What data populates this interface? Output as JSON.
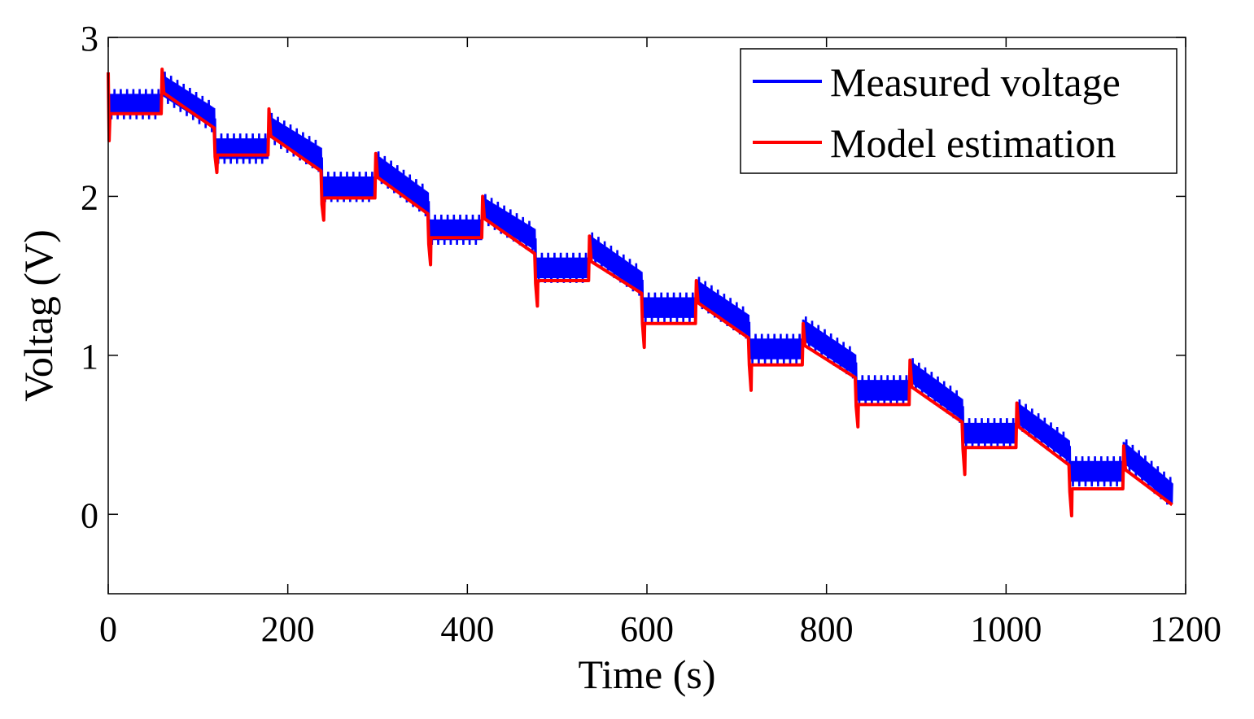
{
  "chart_data": {
    "type": "line",
    "title": "",
    "xlabel": "Time (s)",
    "ylabel": "Voltag (V)",
    "xlim": [
      0,
      1200
    ],
    "ylim": [
      -0.5,
      3
    ],
    "xticks": [
      0,
      200,
      400,
      600,
      800,
      1000,
      1200
    ],
    "xtick_labels": [
      "0",
      "200",
      "400",
      "600",
      "800",
      "1000",
      "1200"
    ],
    "yticks": [
      0,
      1,
      2,
      3
    ],
    "ytick_labels": [
      "0",
      "1",
      "2",
      "3"
    ],
    "grid": false,
    "legend_position": "top-right",
    "colors": {
      "measured": "#0000ff",
      "model": "#ff0000",
      "axes": "#000000"
    },
    "cycle_period_s": 119,
    "rest_duration_s": 59,
    "series": [
      {
        "name": "Measured voltage",
        "color": "#0000ff",
        "band_width_v": 0.13,
        "x": [
          0,
          59,
          60,
          118,
          120,
          178,
          179,
          237,
          239,
          297,
          298,
          356,
          358,
          416,
          417,
          475,
          477,
          535,
          536,
          594,
          596,
          654,
          655,
          713,
          715,
          773,
          774,
          832,
          834,
          892,
          893,
          951,
          953,
          1011,
          1012,
          1070,
          1072,
          1130,
          1131,
          1185
        ],
        "values": [
          2.58,
          2.58,
          2.7,
          2.49,
          2.3,
          2.3,
          2.44,
          2.24,
          2.06,
          2.06,
          2.2,
          1.96,
          1.79,
          1.79,
          1.93,
          1.73,
          1.55,
          1.55,
          1.69,
          1.46,
          1.3,
          1.3,
          1.41,
          1.19,
          1.04,
          1.04,
          1.16,
          0.94,
          0.78,
          0.78,
          0.9,
          0.66,
          0.51,
          0.51,
          0.64,
          0.4,
          0.27,
          0.27,
          0.39,
          0.13
        ]
      },
      {
        "name": "Model estimation",
        "color": "#ff0000",
        "x": [
          0,
          1,
          2,
          59,
          60,
          62,
          118,
          119,
          121,
          121.5,
          122,
          178,
          179,
          181,
          237,
          238,
          240,
          240.5,
          241,
          297,
          298,
          300,
          356,
          357,
          359,
          359.5,
          360,
          416,
          417,
          419,
          475,
          476,
          478,
          478.5,
          479,
          535,
          536,
          538,
          594,
          595,
          597,
          597.5,
          598,
          654,
          655,
          657,
          713,
          714,
          716,
          716.5,
          717,
          773,
          774,
          776,
          832,
          833,
          835,
          835.5,
          836,
          892,
          893,
          895,
          951,
          952,
          954,
          954.5,
          955,
          1011,
          1012,
          1014,
          1070,
          1071,
          1073,
          1073.5,
          1074,
          1130,
          1131,
          1133,
          1185
        ],
        "values": [
          2.78,
          2.35,
          2.52,
          2.52,
          2.8,
          2.65,
          2.43,
          2.25,
          2.15,
          2.25,
          2.26,
          2.26,
          2.55,
          2.38,
          2.16,
          1.95,
          1.85,
          1.98,
          1.99,
          1.99,
          2.27,
          2.12,
          1.89,
          1.7,
          1.57,
          1.74,
          1.74,
          1.74,
          2.0,
          1.86,
          1.64,
          1.45,
          1.31,
          1.46,
          1.47,
          1.47,
          1.75,
          1.59,
          1.39,
          1.2,
          1.05,
          1.2,
          1.2,
          1.2,
          1.47,
          1.33,
          1.11,
          0.94,
          0.78,
          0.94,
          0.94,
          0.94,
          1.2,
          1.06,
          0.86,
          0.68,
          0.55,
          0.69,
          0.69,
          0.69,
          0.97,
          0.8,
          0.58,
          0.41,
          0.25,
          0.42,
          0.42,
          0.42,
          0.7,
          0.55,
          0.31,
          0.14,
          -0.01,
          0.15,
          0.16,
          0.16,
          0.43,
          0.28,
          0.06
        ]
      }
    ]
  }
}
